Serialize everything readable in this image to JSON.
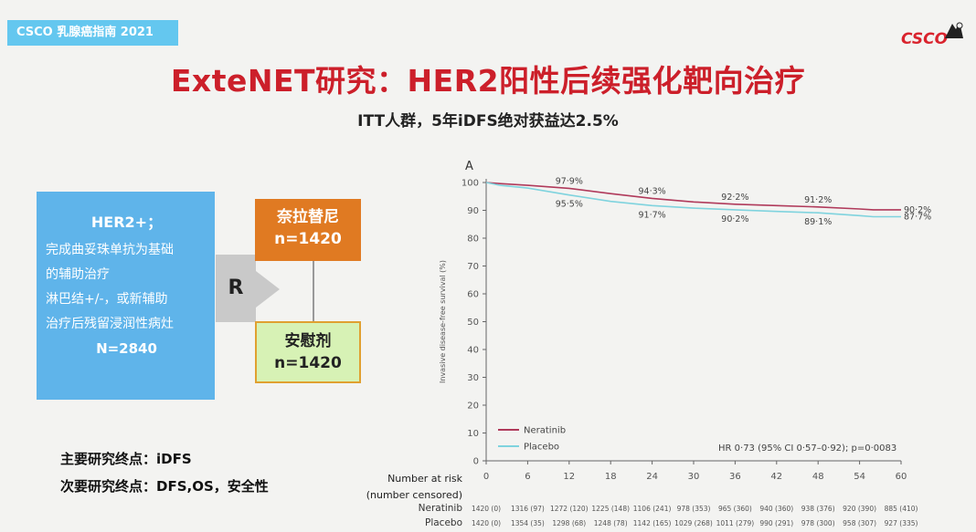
{
  "header": {
    "badge": "CSCO 乳腺癌指南 2021",
    "logo_text": "CSCO",
    "title": "ExteNET研究：HER2阳性后续强化靶向治疗",
    "subtitle": "ITT人群，5年iDFS绝对获益达2.5%"
  },
  "design": {
    "population": {
      "title": "HER2+；",
      "line1": "完成曲妥珠单抗为基础",
      "line2": "的辅助治疗",
      "line3": "淋巴结+/-，或新辅助",
      "line4": "治疗后残留浸润性病灶",
      "n": "N=2840"
    },
    "randomize_label": "R",
    "arm1": {
      "name": "奈拉替尼",
      "n": "n=1420"
    },
    "arm2": {
      "name": "安慰剂",
      "n": "n=1420"
    }
  },
  "endpoints": {
    "primary": "主要研究终点：iDFS",
    "secondary": "次要研究终点：DFS,OS，安全性"
  },
  "colors": {
    "badge": "#64c7ef",
    "title": "#cc1f2a",
    "neratinib": "#b03a5b",
    "placebo": "#7fd3de",
    "arm1_box": "#e07a22",
    "arm2_box": "#d7f2b5",
    "population_box": "#5fb4ea"
  },
  "chart_data": {
    "type": "line",
    "panel_label": "A",
    "ylabel": "Invasive disease-free survival (%)",
    "ylim": [
      0,
      100
    ],
    "yticks": [
      0,
      10,
      20,
      30,
      40,
      50,
      60,
      70,
      80,
      90,
      100
    ],
    "xlim": [
      0,
      60
    ],
    "xticks": [
      0,
      6,
      12,
      18,
      24,
      30,
      36,
      42,
      48,
      54,
      60
    ],
    "legend_position": "bottom-left",
    "series": [
      {
        "name": "Neratinib",
        "color": "#b03a5b",
        "x": [
          0,
          2,
          6,
          12,
          18,
          24,
          30,
          36,
          42,
          48,
          54,
          56,
          60
        ],
        "y": [
          100,
          99.6,
          99.0,
          97.9,
          96.0,
          94.3,
          93.0,
          92.2,
          91.7,
          91.2,
          90.5,
          90.2,
          90.2
        ]
      },
      {
        "name": "Placebo",
        "color": "#7fd3de",
        "x": [
          0,
          2,
          6,
          12,
          18,
          24,
          30,
          36,
          42,
          48,
          54,
          56,
          60
        ],
        "y": [
          100,
          99.0,
          98.0,
          95.5,
          93.2,
          91.7,
          90.8,
          90.2,
          89.6,
          89.1,
          88.1,
          87.7,
          87.7
        ]
      }
    ],
    "annotations": [
      {
        "text": "97·9%",
        "x": 12,
        "y": 97.9,
        "series": "Neratinib",
        "pos": "above"
      },
      {
        "text": "94·3%",
        "x": 24,
        "y": 94.3,
        "series": "Neratinib",
        "pos": "above"
      },
      {
        "text": "92·2%",
        "x": 36,
        "y": 92.2,
        "series": "Neratinib",
        "pos": "above"
      },
      {
        "text": "91·2%",
        "x": 48,
        "y": 91.2,
        "series": "Neratinib",
        "pos": "above"
      },
      {
        "text": "90·2%",
        "x": 60,
        "y": 90.2,
        "series": "Neratinib",
        "pos": "end"
      },
      {
        "text": "95·5%",
        "x": 12,
        "y": 95.5,
        "series": "Placebo",
        "pos": "below"
      },
      {
        "text": "91·7%",
        "x": 24,
        "y": 91.7,
        "series": "Placebo",
        "pos": "below"
      },
      {
        "text": "90·2%",
        "x": 36,
        "y": 90.2,
        "series": "Placebo",
        "pos": "below"
      },
      {
        "text": "89·1%",
        "x": 48,
        "y": 89.1,
        "series": "Placebo",
        "pos": "below"
      },
      {
        "text": "87·7%",
        "x": 60,
        "y": 87.7,
        "series": "Placebo",
        "pos": "end"
      }
    ],
    "hr_text": "HR 0·73 (95% CI 0·57–0·92); p=0·0083",
    "risk_table": {
      "header": "Number at risk",
      "subheader": "(number censored)",
      "rows": [
        {
          "label": "Neratinib",
          "values": [
            "1420 (0)",
            "1316 (97)",
            "1272 (120)",
            "1225 (148)",
            "1106 (241)",
            "978 (353)",
            "965 (360)",
            "940 (360)",
            "938 (376)",
            "920 (390)",
            "885 (410)"
          ]
        },
        {
          "label": "Placebo",
          "values": [
            "1420 (0)",
            "1354 (35)",
            "1298 (68)",
            "1248 (78)",
            "1142 (165)",
            "1029 (268)",
            "1011 (279)",
            "990 (291)",
            "978 (300)",
            "958 (307)",
            "927 (335)"
          ]
        }
      ]
    }
  }
}
